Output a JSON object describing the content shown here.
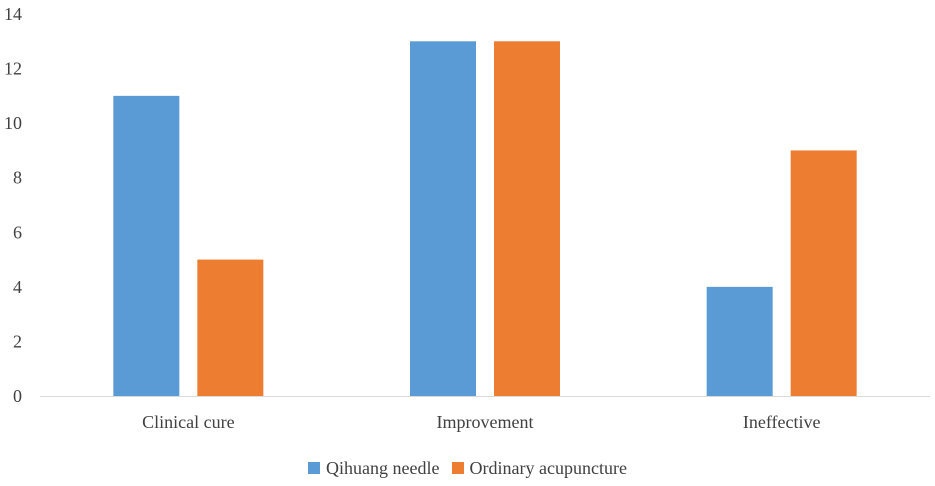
{
  "chart_data": {
    "type": "bar",
    "categories": [
      "Clinical cure",
      "Improvement",
      "Ineffective"
    ],
    "series": [
      {
        "name": "Qihuang needle",
        "values": [
          11,
          13,
          4
        ],
        "color": "#5B9BD5"
      },
      {
        "name": "Ordinary acupuncture",
        "values": [
          5,
          13,
          9
        ],
        "color": "#ED7D31"
      }
    ],
    "ylim": [
      0,
      14
    ],
    "yticks": [
      0,
      2,
      4,
      6,
      8,
      10,
      12,
      14
    ],
    "grid": false,
    "legend_position": "bottom",
    "axis_color": "#D9D9D9",
    "text_color": "#404040"
  }
}
